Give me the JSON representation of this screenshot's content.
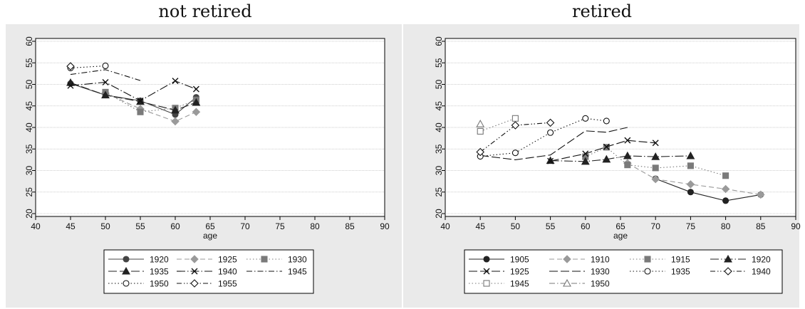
{
  "chart_data": [
    {
      "type": "line",
      "title": "not retired",
      "xlabel": "age",
      "ylabel": "",
      "xlim": [
        40,
        90
      ],
      "ylim": [
        20,
        60
      ],
      "xticks": [
        40,
        45,
        50,
        55,
        60,
        65,
        70,
        75,
        80,
        85,
        90
      ],
      "yticks": [
        20,
        25,
        30,
        35,
        40,
        45,
        50,
        55,
        60
      ],
      "grid": true,
      "legend_position": "bottom",
      "series": [
        {
          "name": "1920",
          "dash": "solid",
          "marker": "circle-filled",
          "color": "#444444",
          "x": [
            45,
            50,
            55,
            60,
            63
          ],
          "y": [
            50.2,
            47.5,
            46.2,
            43.0,
            47.0
          ]
        },
        {
          "name": "1925",
          "dash": "dash",
          "marker": "diamond-filled",
          "color": "#9a9a9a",
          "x": [
            50,
            55,
            60,
            63
          ],
          "y": [
            48.0,
            44.3,
            41.4,
            43.6
          ]
        },
        {
          "name": "1930",
          "dash": "dot",
          "marker": "square-filled",
          "color": "#7a7a7a",
          "x": [
            50,
            55,
            60,
            63
          ],
          "y": [
            48.2,
            43.6,
            44.5,
            46.4
          ]
        },
        {
          "name": "1935",
          "dash": "longdash",
          "marker": "triangle-filled",
          "color": "#222222",
          "x": [
            45,
            50,
            55,
            60,
            63
          ],
          "y": [
            50.4,
            47.5,
            46.0,
            44.0,
            45.8
          ]
        },
        {
          "name": "1940",
          "dash": "longdashdot",
          "marker": "x",
          "color": "#111111",
          "x": [
            45,
            50,
            55,
            60,
            63
          ],
          "y": [
            49.7,
            50.5,
            46.2,
            50.8,
            48.9
          ]
        },
        {
          "name": "1945",
          "dash": "dashdot",
          "marker": "none",
          "color": "#111111",
          "x": [
            45,
            50,
            55
          ],
          "y": [
            52.3,
            53.4,
            50.9
          ]
        },
        {
          "name": "1950",
          "dash": "dot",
          "marker": "circle-open",
          "color": "#111111",
          "x": [
            45,
            50
          ],
          "y": [
            53.8,
            54.3
          ]
        },
        {
          "name": "1955",
          "dash": "dashdotdot",
          "marker": "diamond-open",
          "color": "#111111",
          "x": [
            45
          ],
          "y": [
            54.2
          ]
        }
      ],
      "legend_rows": [
        [
          "1920",
          "1925",
          "1930"
        ],
        [
          "1935",
          "1940",
          "1945"
        ],
        [
          "1950",
          "1955"
        ]
      ]
    },
    {
      "type": "line",
      "title": "retired",
      "xlabel": "age",
      "ylabel": "",
      "xlim": [
        40,
        90
      ],
      "ylim": [
        20,
        60
      ],
      "xticks": [
        40,
        45,
        50,
        55,
        60,
        65,
        70,
        75,
        80,
        85,
        90
      ],
      "yticks": [
        20,
        25,
        30,
        35,
        40,
        45,
        50,
        55,
        60
      ],
      "grid": true,
      "legend_position": "bottom",
      "series": [
        {
          "name": "1905",
          "dash": "solid",
          "marker": "circle-filled",
          "color": "#222222",
          "x": [
            70,
            75,
            80,
            85
          ],
          "y": [
            28.1,
            25.0,
            23.0,
            24.4
          ]
        },
        {
          "name": "1910",
          "dash": "dash",
          "marker": "diamond-filled",
          "color": "#9a9a9a",
          "x": [
            66,
            70,
            75,
            80,
            85
          ],
          "y": [
            31.7,
            28.0,
            26.8,
            25.7,
            24.4
          ]
        },
        {
          "name": "1915",
          "dash": "dot",
          "marker": "square-filled",
          "color": "#7a7a7a",
          "x": [
            60,
            63,
            66,
            70,
            75,
            80
          ],
          "y": [
            33.2,
            35.4,
            31.3,
            30.6,
            31.1,
            28.8
          ]
        },
        {
          "name": "1920",
          "dash": "longdashdot",
          "marker": "triangle-filled",
          "color": "#222222",
          "x": [
            55,
            60,
            63,
            66,
            70,
            75
          ],
          "y": [
            32.3,
            32.1,
            32.6,
            33.4,
            33.2,
            33.4
          ]
        },
        {
          "name": "1925",
          "dash": "longdash",
          "marker": "x",
          "color": "#111111",
          "x": [
            55,
            60,
            63,
            66,
            70
          ],
          "y": [
            32.2,
            33.9,
            35.5,
            37.0,
            36.4
          ]
        },
        {
          "name": "1930",
          "dash": "longdash",
          "marker": "none",
          "color": "#111111",
          "x": [
            45,
            50,
            55,
            60,
            63,
            66
          ],
          "y": [
            33.5,
            32.5,
            33.6,
            39.2,
            38.9,
            40.0
          ]
        },
        {
          "name": "1935",
          "dash": "dot",
          "marker": "circle-open",
          "color": "#111111",
          "x": [
            45,
            50,
            55,
            60,
            63
          ],
          "y": [
            33.3,
            34.1,
            38.8,
            42.1,
            41.5
          ]
        },
        {
          "name": "1940",
          "dash": "dashdotdot",
          "marker": "diamond-open",
          "color": "#111111",
          "x": [
            45,
            50,
            55
          ],
          "y": [
            34.3,
            40.5,
            41.1
          ]
        },
        {
          "name": "1945",
          "dash": "dot",
          "marker": "square-open",
          "color": "#777777",
          "x": [
            45,
            50
          ],
          "y": [
            39.1,
            42.1
          ]
        },
        {
          "name": "1950",
          "dash": "dashdot",
          "marker": "triangle-open",
          "color": "#777777",
          "x": [
            45
          ],
          "y": [
            40.8
          ]
        }
      ],
      "legend_rows": [
        [
          "1905",
          "1910",
          "1915",
          "1920"
        ],
        [
          "1925",
          "1930",
          "1935",
          "1940"
        ],
        [
          "1945",
          "1950"
        ]
      ]
    }
  ]
}
